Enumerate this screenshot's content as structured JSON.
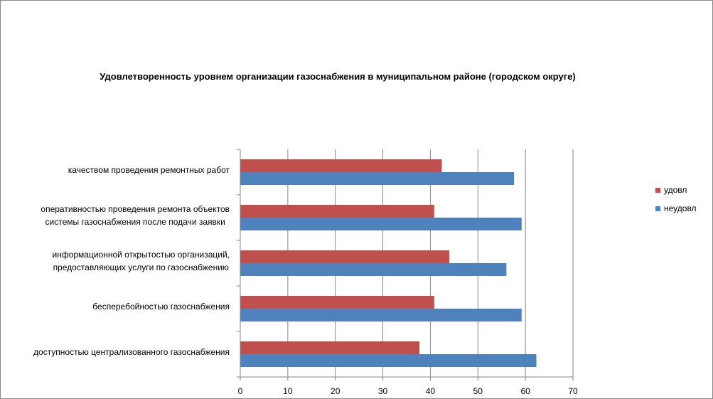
{
  "chart_data": {
    "type": "bar",
    "orientation": "horizontal",
    "title": "Удовлетворенность уровнем организации газоснабжения в муниципальном районе (городском округе)",
    "categories": [
      [
        "качеством проведения  ремонтных работ"
      ],
      [
        "оперативностью  проведения  ремонта объектов",
        "системы газоснабжения после подачи заявки"
      ],
      [
        "информационной открытостью организаций,",
        "предоставляющих услуги по газоснабжению"
      ],
      [
        "бесперебойностью  газоснабжения"
      ],
      [
        "доступностью централизованного газоснабжения"
      ]
    ],
    "series": [
      {
        "name": "удовл",
        "color": "#C0504D",
        "values": [
          42.4,
          40.8,
          44,
          40.8,
          37.7
        ]
      },
      {
        "name": "неудовл",
        "color": "#4F81BD",
        "values": [
          57.6,
          59.2,
          56,
          59.2,
          62.3
        ]
      }
    ],
    "xlim": [
      0,
      70
    ],
    "xticks": [
      "0",
      "10",
      "20",
      "30",
      "40",
      "50",
      "60",
      "70"
    ],
    "grid": true,
    "legend": "right"
  }
}
